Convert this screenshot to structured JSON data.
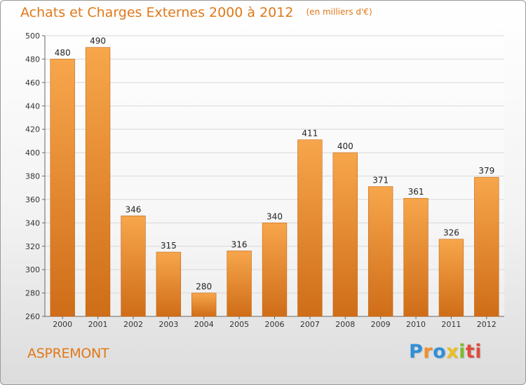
{
  "chart_data": {
    "type": "bar",
    "title": "Achats et Charges Externes 2000 à 2012",
    "subtitle": "(en milliers d'€)",
    "xlabel": "",
    "ylabel": "",
    "categories": [
      "2000",
      "2001",
      "2002",
      "2003",
      "2004",
      "2005",
      "2006",
      "2007",
      "2008",
      "2009",
      "2010",
      "2011",
      "2012"
    ],
    "values": [
      480,
      490,
      346,
      315,
      280,
      316,
      340,
      411,
      400,
      371,
      361,
      326,
      379
    ],
    "ylim": [
      260,
      500
    ],
    "yticks": [
      260,
      280,
      300,
      320,
      340,
      360,
      380,
      400,
      420,
      440,
      460,
      480,
      500
    ],
    "grid": true,
    "legend": "none",
    "colors": {
      "bar_light": "#f7a64c",
      "bar_dark": "#cf6d18",
      "accent": "#e07818",
      "grid": "#d8d8d8"
    }
  },
  "footer": {
    "commune": "ASPREMONT",
    "logo_letters": [
      "P",
      "r",
      "o",
      "x",
      "i",
      "ti"
    ]
  }
}
